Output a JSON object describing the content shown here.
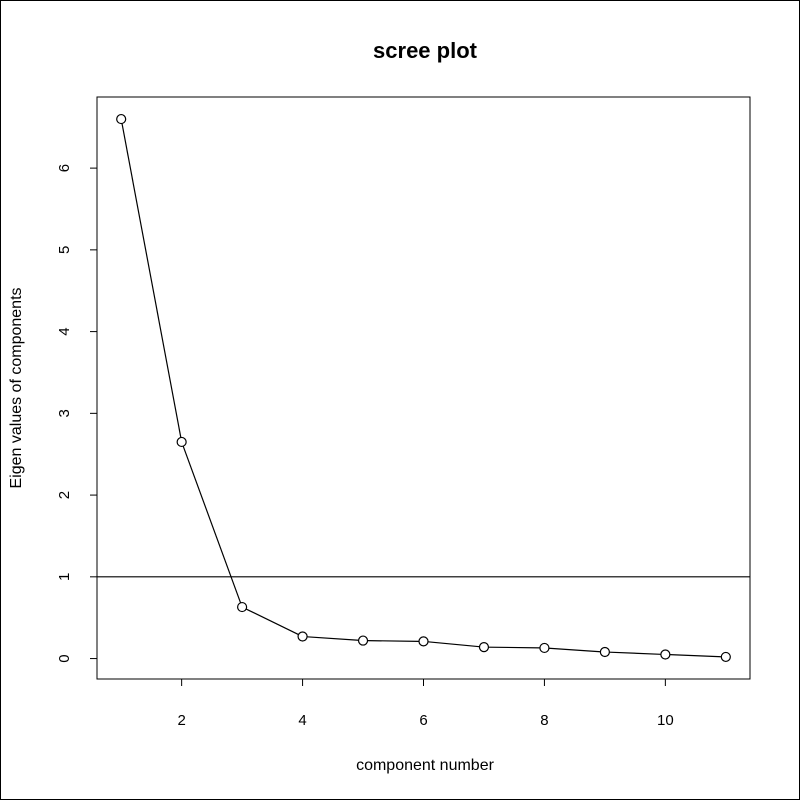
{
  "chart_data": {
    "type": "line",
    "title": "scree plot",
    "xlabel": "component number",
    "ylabel": "Eigen values of components",
    "x": [
      1,
      2,
      3,
      4,
      5,
      6,
      7,
      8,
      9,
      10,
      11
    ],
    "series": [
      {
        "values": [
          6.6,
          2.65,
          0.63,
          0.27,
          0.22,
          0.21,
          0.14,
          0.13,
          0.08,
          0.05,
          0.02
        ]
      }
    ],
    "reference_line": {
      "orientation": "horizontal",
      "y": 1
    },
    "xlim": [
      0.6,
      11.4
    ],
    "ylim": [
      -0.25,
      6.87
    ],
    "x_ticks": [
      2,
      4,
      6,
      8,
      10
    ],
    "y_ticks": [
      0,
      1,
      2,
      3,
      4,
      5,
      6
    ],
    "markers": "open-circle",
    "grid": false,
    "legend": "none",
    "colors": {
      "line": "#000000",
      "marker_fill": "#ffffff",
      "frame": "#000000"
    }
  }
}
